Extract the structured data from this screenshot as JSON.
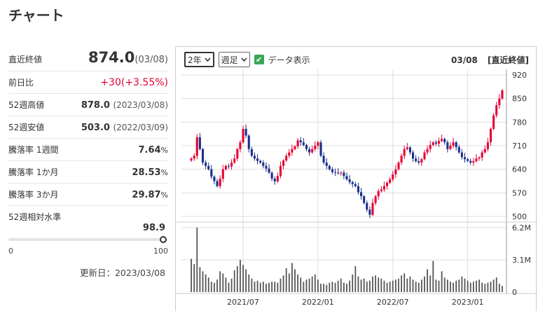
{
  "page": {
    "title": "チャート"
  },
  "stats": {
    "last_close": {
      "label": "直近終値",
      "value": "874.0",
      "date": "(03/08)"
    },
    "change": {
      "label": "前日比",
      "value": "+30(+3.55%)"
    },
    "high52": {
      "label": "52週高値",
      "value": "878.0",
      "date": "(2023/03/08)"
    },
    "low52": {
      "label": "52週安値",
      "value": "503.0",
      "date": "(2022/03/09)"
    },
    "drop1w": {
      "label": "騰落率 1週間",
      "value": "7.64",
      "unit": "%"
    },
    "drop1m": {
      "label": "騰落率 1か月",
      "value": "28.53",
      "unit": "%"
    },
    "drop3m": {
      "label": "騰落率 3か月",
      "value": "29.87",
      "unit": "%"
    },
    "relative": {
      "label": "52週相対水準",
      "value": "98.9",
      "min": "0",
      "max": "100",
      "level": 98.9
    },
    "updated": "更新日：2023/03/08"
  },
  "toolbar": {
    "period": "2年",
    "interval": "週足",
    "show_data_label": "データ表示",
    "show_data_checked": true,
    "right_date": "03/08",
    "right_label": "[直近終値]"
  },
  "colors": {
    "up": "#e60033",
    "down": "#1a2f8a",
    "volume": "#555555",
    "grid": "#dddddd"
  },
  "chart_data": {
    "type": "candlestick",
    "price_axis": {
      "ticks": [
        "920",
        "850",
        "780",
        "710",
        "640",
        "570",
        "500"
      ],
      "ylim": [
        500,
        920
      ]
    },
    "volume_axis": {
      "ticks": [
        "6.2M",
        "3.1M",
        "0"
      ],
      "ylim": [
        0,
        6.2
      ]
    },
    "x_ticks": [
      "2021/07",
      "2022/01",
      "2022/07",
      "2023/01"
    ],
    "closes": [
      672,
      680,
      735,
      700,
      660,
      650,
      640,
      618,
      605,
      590,
      612,
      640,
      650,
      648,
      660,
      672,
      700,
      720,
      760,
      740,
      700,
      680,
      672,
      665,
      660,
      650,
      642,
      630,
      612,
      604,
      620,
      650,
      666,
      680,
      690,
      700,
      708,
      726,
      720,
      712,
      700,
      690,
      700,
      710,
      720,
      680,
      660,
      650,
      640,
      632,
      630,
      628,
      630,
      620,
      610,
      602,
      596,
      590,
      572,
      560,
      540,
      520,
      505,
      540,
      560,
      575,
      580,
      590,
      600,
      610,
      625,
      640,
      660,
      680,
      700,
      705,
      690,
      672,
      664,
      660,
      670,
      690,
      700,
      712,
      720,
      716,
      724,
      730,
      720,
      700,
      710,
      720,
      706,
      690,
      676,
      670,
      665,
      660,
      664,
      672,
      675,
      690,
      700,
      720,
      760,
      800,
      830,
      850,
      874
    ],
    "volumes": [
      3.2,
      2.7,
      6.2,
      2.4,
      2.0,
      1.7,
      1.4,
      1.0,
      0.9,
      1.2,
      2.0,
      1.8,
      1.4,
      0.9,
      1.3,
      2.1,
      2.5,
      3.1,
      2.6,
      2.2,
      1.7,
      1.3,
      1.0,
      1.1,
      0.9,
      1.0,
      0.8,
      0.9,
      1.0,
      1.0,
      0.9,
      1.3,
      1.6,
      2.3,
      1.8,
      2.8,
      2.2,
      1.7,
      1.4,
      1.0,
      1.2,
      1.3,
      1.5,
      1.7,
      1.2,
      0.8,
      0.8,
      0.7,
      0.9,
      1.0,
      0.9,
      1.1,
      1.3,
      0.9,
      0.8,
      1.1,
      1.7,
      2.5,
      1.5,
      1.2,
      1.3,
      1.0,
      1.1,
      1.5,
      1.6,
      1.4,
      1.3,
      1.1,
      0.9,
      1.0,
      1.1,
      1.2,
      1.3,
      1.6,
      1.8,
      1.3,
      1.5,
      1.2,
      1.0,
      0.9,
      1.2,
      1.5,
      2.2,
      1.6,
      3.0,
      1.2,
      1.1,
      2.0,
      1.4,
      1.2,
      1.0,
      0.9,
      1.1,
      1.2,
      1.5,
      1.3,
      1.1,
      0.9,
      1.0,
      1.1,
      1.2,
      0.9,
      0.8,
      0.9,
      1.0,
      1.2,
      1.4,
      0.8,
      0.6
    ]
  }
}
